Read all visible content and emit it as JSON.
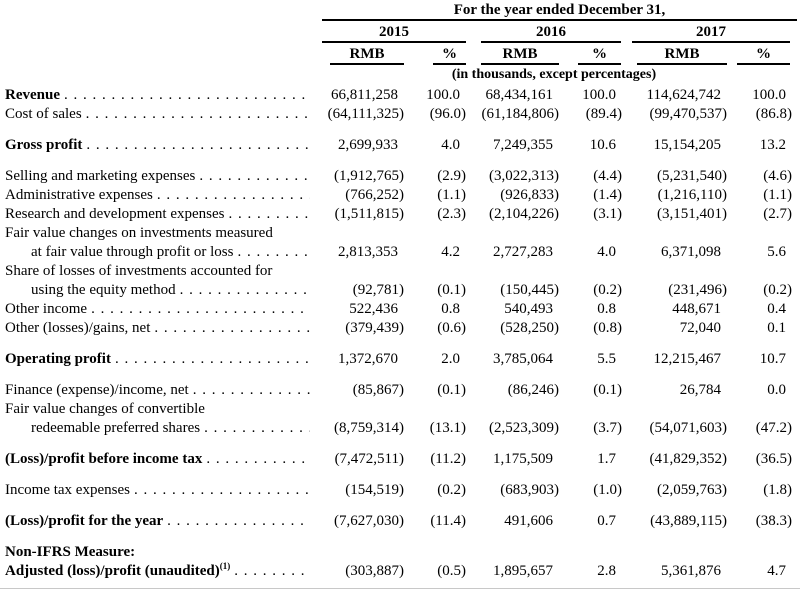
{
  "table": {
    "header": {
      "title": "For the year ended December 31,",
      "years": [
        "2015",
        "2016",
        "2017"
      ],
      "columns": [
        "RMB",
        "%",
        "RMB",
        "%",
        "RMB",
        "%"
      ],
      "note": "(in thousands, except percentages)"
    },
    "rows": [
      {
        "lines": [
          "Revenue"
        ],
        "bold": true,
        "dots": true,
        "values": [
          "66,811,258",
          "100.0",
          "68,434,161",
          "100.0",
          "114,624,742",
          "100.0"
        ]
      },
      {
        "lines": [
          "Cost of sales"
        ],
        "bold": false,
        "dots": true,
        "values": [
          "(64,111,325)",
          "(96.0)",
          "(61,184,806)",
          "(89.4)",
          "(99,470,537)",
          "(86.8)"
        ]
      },
      {
        "lines": [
          "Gross profit"
        ],
        "bold": true,
        "gap": true,
        "dots": true,
        "values": [
          "2,699,933",
          "4.0",
          "7,249,355",
          "10.6",
          "15,154,205",
          "13.2"
        ]
      },
      {
        "lines": [
          "Selling and marketing expenses"
        ],
        "bold": false,
        "gap": true,
        "dots": true,
        "values": [
          "(1,912,765)",
          "(2.9)",
          "(3,022,313)",
          "(4.4)",
          "(5,231,540)",
          "(4.6)"
        ]
      },
      {
        "lines": [
          "Administrative expenses"
        ],
        "bold": false,
        "dots": true,
        "values": [
          "(766,252)",
          "(1.1)",
          "(926,833)",
          "(1.4)",
          "(1,216,110)",
          "(1.1)"
        ]
      },
      {
        "lines": [
          "Research and development expenses"
        ],
        "bold": false,
        "dots": true,
        "values": [
          "(1,511,815)",
          "(2.3)",
          "(2,104,226)",
          "(3.1)",
          "(3,151,401)",
          "(2.7)"
        ]
      },
      {
        "lines": [
          "Fair value changes on investments measured",
          "at fair value through profit or loss"
        ],
        "bold": false,
        "dots": true,
        "values": [
          "2,813,353",
          "4.2",
          "2,727,283",
          "4.0",
          "6,371,098",
          "5.6"
        ]
      },
      {
        "lines": [
          "Share of losses of investments accounted for",
          "using the equity method"
        ],
        "bold": false,
        "dots": true,
        "values": [
          "(92,781)",
          "(0.1)",
          "(150,445)",
          "(0.2)",
          "(231,496)",
          "(0.2)"
        ]
      },
      {
        "lines": [
          "Other income"
        ],
        "bold": false,
        "dots": true,
        "values": [
          "522,436",
          "0.8",
          "540,493",
          "0.8",
          "448,671",
          "0.4"
        ]
      },
      {
        "lines": [
          "Other (losses)/gains, net"
        ],
        "bold": false,
        "dots": true,
        "values": [
          "(379,439)",
          "(0.6)",
          "(528,250)",
          "(0.8)",
          "72,040",
          "0.1"
        ]
      },
      {
        "lines": [
          "Operating profit"
        ],
        "bold": true,
        "gap": true,
        "dots": true,
        "values": [
          "1,372,670",
          "2.0",
          "3,785,064",
          "5.5",
          "12,215,467",
          "10.7"
        ]
      },
      {
        "lines": [
          "Finance (expense)/income, net"
        ],
        "bold": false,
        "gap": true,
        "dots": true,
        "values": [
          "(85,867)",
          "(0.1)",
          "(86,246)",
          "(0.1)",
          "26,784",
          "0.0"
        ]
      },
      {
        "lines": [
          "Fair value changes of convertible",
          "redeemable preferred shares"
        ],
        "bold": false,
        "dots": true,
        "values": [
          "(8,759,314)",
          "(13.1)",
          "(2,523,309)",
          "(3.7)",
          "(54,071,603)",
          "(47.2)"
        ]
      },
      {
        "lines": [
          "(Loss)/profit before income tax"
        ],
        "bold": true,
        "gap": true,
        "dots": true,
        "values": [
          "(7,472,511)",
          "(11.2)",
          "1,175,509",
          "1.7",
          "(41,829,352)",
          "(36.5)"
        ]
      },
      {
        "lines": [
          "Income tax expenses"
        ],
        "bold": false,
        "gap": true,
        "dots": true,
        "values": [
          "(154,519)",
          "(0.2)",
          "(683,903)",
          "(1.0)",
          "(2,059,763)",
          "(1.8)"
        ]
      },
      {
        "lines": [
          "(Loss)/profit for the year"
        ],
        "bold": true,
        "gap": true,
        "dots": true,
        "values": [
          "(7,627,030)",
          "(11.4)",
          "491,606",
          "0.7",
          "(43,889,115)",
          "(38.3)"
        ]
      },
      {
        "lines": [
          "Non-IFRS Measure:"
        ],
        "bold": true,
        "gap": true,
        "dots": false,
        "values": []
      },
      {
        "lines": [
          "Adjusted (loss)/profit (unaudited)"
        ],
        "sup": "(1)",
        "bold": true,
        "dots": true,
        "values": [
          "(303,887)",
          "(0.5)",
          "1,895,657",
          "2.8",
          "5,361,876",
          "4.7"
        ]
      }
    ]
  }
}
